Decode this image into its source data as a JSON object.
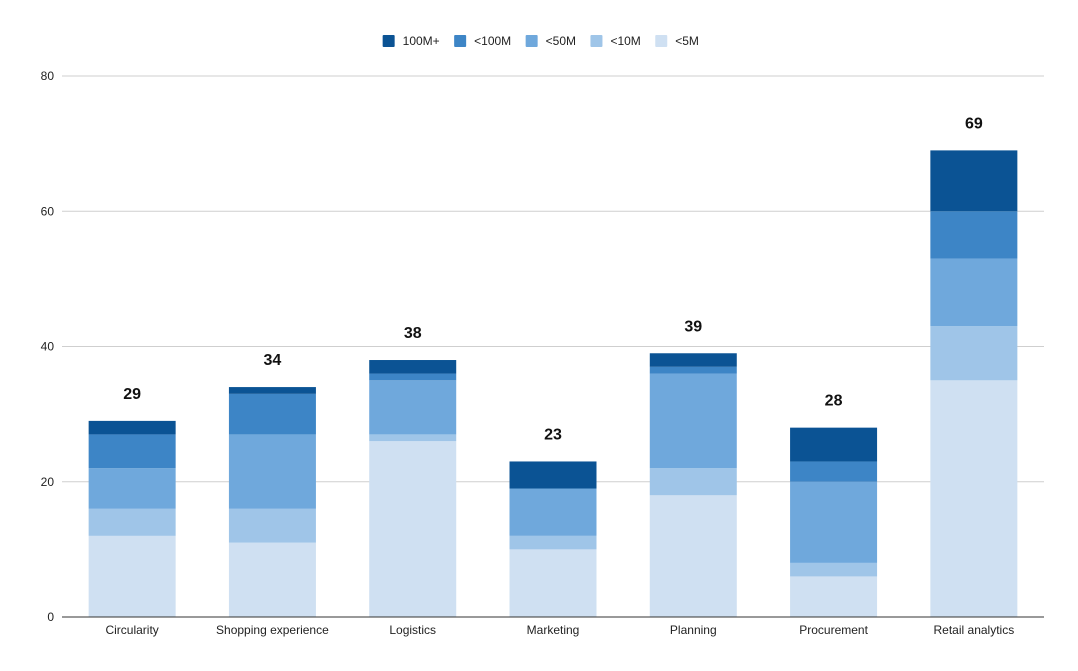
{
  "chart_data": {
    "type": "bar",
    "stacked": true,
    "title": "",
    "xlabel": "",
    "ylabel": "",
    "categories": [
      "Circularity",
      "Shopping experience",
      "Logistics",
      "Marketing",
      "Planning",
      "Procurement",
      "Retail analytics"
    ],
    "series": [
      {
        "name": "<5M",
        "color": "#cfe0f2",
        "values": [
          12,
          11,
          26,
          10,
          18,
          6,
          35
        ]
      },
      {
        "name": "<10M",
        "color": "#9fc5e8",
        "values": [
          4,
          5,
          1,
          2,
          4,
          2,
          8
        ]
      },
      {
        "name": "<50M",
        "color": "#6fa8dc",
        "values": [
          6,
          11,
          8,
          7,
          14,
          12,
          10
        ]
      },
      {
        "name": "<100M",
        "color": "#3d85c6",
        "values": [
          5,
          6,
          1,
          0,
          1,
          3,
          7
        ]
      },
      {
        "name": "100M+",
        "color": "#0b5394",
        "values": [
          2,
          1,
          2,
          4,
          2,
          5,
          9
        ]
      }
    ],
    "totals": [
      "29",
      "34",
      "38",
      "23",
      "39",
      "28",
      "69"
    ],
    "legend_order": [
      "100M+",
      "<100M",
      "<50M",
      "<10M",
      "<5M"
    ],
    "legend_position": "top",
    "ylim": [
      0,
      80
    ],
    "yticks": [
      "0",
      "20",
      "40",
      "60",
      "80"
    ],
    "grid": true
  }
}
